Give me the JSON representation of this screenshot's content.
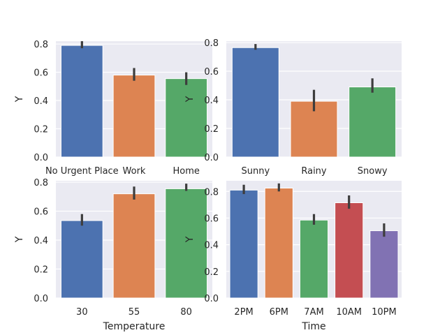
{
  "chart_data": [
    {
      "type": "bar",
      "categories": [
        "No Urgent Place",
        "Work",
        "Home"
      ],
      "values": [
        0.79,
        0.58,
        0.555
      ],
      "error_low": [
        0.77,
        0.54,
        0.51
      ],
      "error_high": [
        0.82,
        0.63,
        0.6
      ],
      "colors": [
        "#4c72b0",
        "#dd8452",
        "#55a868"
      ],
      "xlabel": "",
      "ylabel": "Y",
      "ylim": [
        0,
        0.82
      ],
      "yticks": [
        "0.0",
        "0.2",
        "0.4",
        "0.6",
        "0.8"
      ],
      "grid": true
    },
    {
      "type": "bar",
      "categories": [
        "Sunny",
        "Rainy",
        "Snowy"
      ],
      "values": [
        0.765,
        0.39,
        0.49
      ],
      "error_low": [
        0.75,
        0.32,
        0.45
      ],
      "error_high": [
        0.79,
        0.47,
        0.55
      ],
      "colors": [
        "#4c72b0",
        "#dd8452",
        "#55a868"
      ],
      "xlabel": "",
      "ylabel": "Y",
      "ylim": [
        0,
        0.81
      ],
      "yticks": [
        "0.0",
        "0.2",
        "0.4",
        "0.6",
        "0.8"
      ],
      "grid": true
    },
    {
      "type": "bar",
      "categories": [
        "30",
        "55",
        "80"
      ],
      "values": [
        0.535,
        0.72,
        0.755
      ],
      "error_low": [
        0.5,
        0.68,
        0.74
      ],
      "error_high": [
        0.58,
        0.77,
        0.79
      ],
      "colors": [
        "#4c72b0",
        "#dd8452",
        "#55a868"
      ],
      "xlabel": "Temperature",
      "ylabel": "Y",
      "ylim": [
        0,
        0.81
      ],
      "yticks": [
        "0.0",
        "0.2",
        "0.4",
        "0.6",
        "0.8"
      ],
      "grid": true
    },
    {
      "type": "bar",
      "categories": [
        "2PM",
        "6PM",
        "7AM",
        "10AM",
        "10PM"
      ],
      "values": [
        0.81,
        0.825,
        0.585,
        0.715,
        0.505
      ],
      "error_low": [
        0.78,
        0.8,
        0.55,
        0.67,
        0.46
      ],
      "error_high": [
        0.85,
        0.86,
        0.63,
        0.77,
        0.56
      ],
      "colors": [
        "#4c72b0",
        "#dd8452",
        "#55a868",
        "#c44e52",
        "#8172b3"
      ],
      "xlabel": "Time",
      "ylabel": "Y",
      "ylim": [
        0,
        0.88
      ],
      "yticks": [
        "0.0",
        "0.2",
        "0.4",
        "0.6",
        "0.8"
      ],
      "grid": true
    }
  ]
}
